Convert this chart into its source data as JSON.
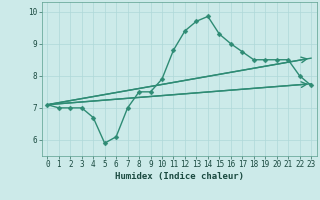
{
  "xlabel": "Humidex (Indice chaleur)",
  "background_color": "#cceae9",
  "line_color": "#2e8b74",
  "xlim": [
    -0.5,
    23.5
  ],
  "ylim": [
    5.5,
    10.3
  ],
  "xticks": [
    0,
    1,
    2,
    3,
    4,
    5,
    6,
    7,
    8,
    9,
    10,
    11,
    12,
    13,
    14,
    15,
    16,
    17,
    18,
    19,
    20,
    21,
    22,
    23
  ],
  "yticks": [
    6,
    7,
    8,
    9,
    10
  ],
  "line1_x": [
    0,
    1,
    2,
    3,
    4,
    5,
    6,
    7,
    8,
    9,
    10,
    11,
    12,
    13,
    14,
    15,
    16,
    17,
    18,
    19,
    20,
    21,
    22,
    23
  ],
  "line1_y": [
    7.1,
    7.0,
    7.0,
    7.0,
    6.7,
    5.9,
    6.1,
    7.0,
    7.5,
    7.5,
    7.9,
    8.8,
    9.4,
    9.7,
    9.85,
    9.3,
    9.0,
    8.75,
    8.5,
    8.5,
    8.5,
    8.5,
    8.0,
    7.7
  ],
  "line2_x": [
    0,
    23
  ],
  "line2_y": [
    7.1,
    8.55
  ],
  "line3_x": [
    0,
    23
  ],
  "line3_y": [
    7.1,
    7.75
  ],
  "grid_color": "#afd8d8",
  "grid_linewidth": 0.5,
  "line_linewidth": 1.0,
  "marker_size": 2.5,
  "tick_fontsize": 5.5,
  "xlabel_fontsize": 6.5
}
